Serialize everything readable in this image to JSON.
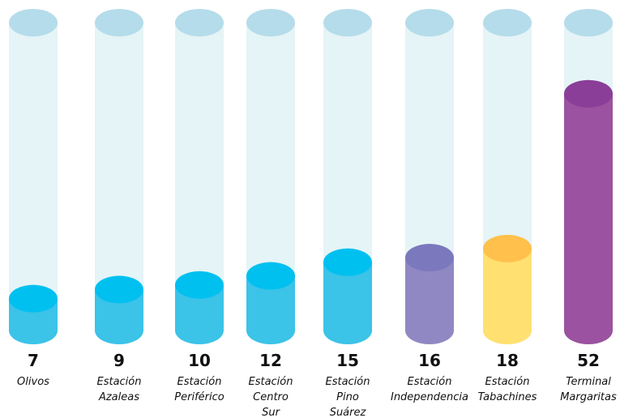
{
  "chart_data": {
    "type": "cylinder",
    "categories": [
      [
        "Olivos"
      ],
      [
        "Estación",
        "Azaleas"
      ],
      [
        "Estación",
        "Periférico"
      ],
      [
        "Estación",
        "Centro",
        "Sur"
      ],
      [
        "Estación",
        "Pino",
        "Suárez"
      ],
      [
        "Estación",
        "Independencia"
      ],
      [
        "Estación",
        "Tabachines"
      ],
      [
        "Terminal",
        "Margaritas"
      ]
    ],
    "values": [
      7,
      9,
      10,
      12,
      15,
      16,
      18,
      52
    ],
    "colors": [
      "#3bc3e8",
      "#3bc3e8",
      "#3bc3e8",
      "#3bc3e8",
      "#3bc3e8",
      "#9088c2",
      "#ffe070",
      "#9b52a0"
    ],
    "top_colors": [
      "#00c0f0",
      "#00c0f0",
      "#00c0f0",
      "#00c0f0",
      "#00c0f0",
      "#7b78bd",
      "#ffc04c",
      "#8a3e98"
    ]
  }
}
